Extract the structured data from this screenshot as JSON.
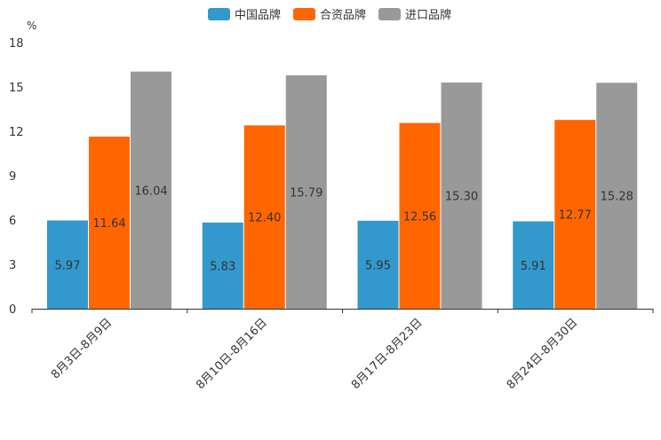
{
  "chart_data": {
    "type": "bar",
    "title": "",
    "unit_label": "%",
    "xlabel": "",
    "ylabel": "%",
    "ylim": [
      0,
      18
    ],
    "yticks": [
      0,
      3,
      6,
      9,
      12,
      15,
      18
    ],
    "categories": [
      "8月3日-8月9日",
      "8月10日-8月16日",
      "8月17日-8月23日",
      "8月24日-8月30日"
    ],
    "series": [
      {
        "name": "中国品牌",
        "color": "#3399cc",
        "values": [
          5.97,
          5.83,
          5.95,
          5.91
        ],
        "labels": [
          "5.97",
          "5.83",
          "5.95",
          "5.91"
        ]
      },
      {
        "name": "合资品牌",
        "color": "#ff6600",
        "values": [
          11.64,
          12.4,
          12.56,
          12.77
        ],
        "labels": [
          "11.64",
          "12.40",
          "12.56",
          "12.77"
        ]
      },
      {
        "name": "进口品牌",
        "color": "#999999",
        "values": [
          16.04,
          15.79,
          15.3,
          15.28
        ],
        "labels": [
          "16.04",
          "15.79",
          "15.30",
          "15.28"
        ]
      }
    ],
    "legend_position": "top-center",
    "grid": false
  }
}
